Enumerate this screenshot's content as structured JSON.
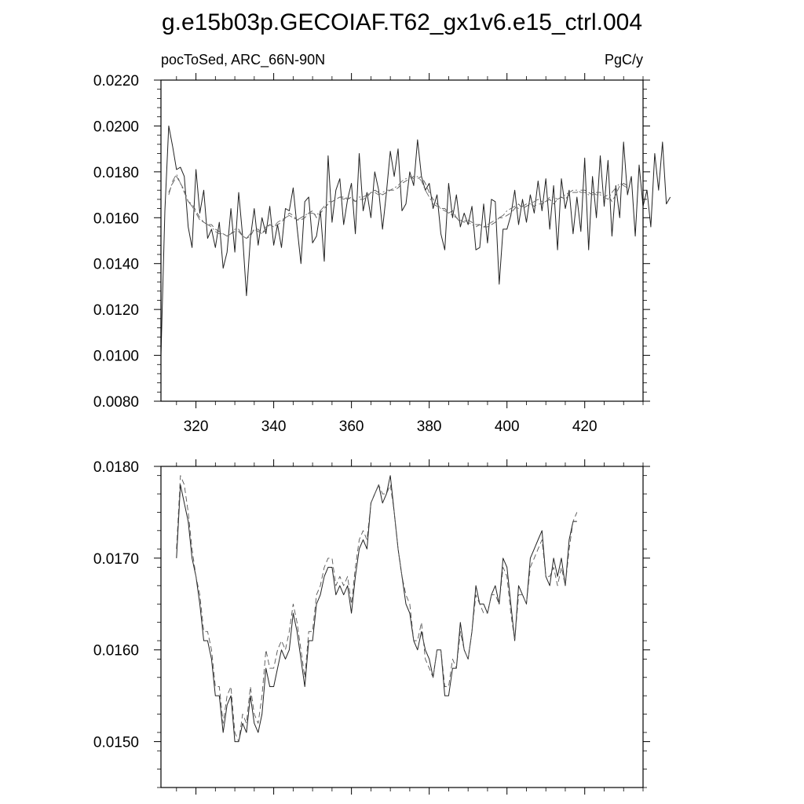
{
  "title": "g.e15b03p.GECOIAF.T62_gx1v6.e15_ctrl.004",
  "chart_data": [
    {
      "type": "line",
      "subtitle_left": "pocToSed, ARC_66N-90N",
      "subtitle_right": "PgC/y",
      "xlim": [
        311,
        435
      ],
      "ylim": [
        0.008,
        0.022
      ],
      "x_ticks": [
        320,
        340,
        360,
        380,
        400,
        420
      ],
      "x_tick_labels": [
        "320",
        "340",
        "360",
        "380",
        "400",
        "420"
      ],
      "y_ticks": [
        0.008,
        0.01,
        0.012,
        0.014,
        0.016,
        0.018,
        0.02,
        0.022
      ],
      "y_tick_labels": [
        "0.0080",
        "0.0100",
        "0.0120",
        "0.0140",
        "0.0160",
        "0.0180",
        "0.0200",
        "0.0220"
      ],
      "grid": false,
      "series": [
        {
          "style": "solid",
          "x_start": 311,
          "values": [
            0.01,
            0.0163,
            0.02,
            0.0191,
            0.0181,
            0.0182,
            0.0178,
            0.0156,
            0.0147,
            0.0181,
            0.0162,
            0.0172,
            0.0151,
            0.0155,
            0.0147,
            0.0158,
            0.0138,
            0.0145,
            0.0164,
            0.0145,
            0.0171,
            0.0152,
            0.0126,
            0.0151,
            0.0164,
            0.0148,
            0.016,
            0.0153,
            0.0165,
            0.0148,
            0.0157,
            0.0147,
            0.0164,
            0.0163,
            0.0173,
            0.0156,
            0.014,
            0.0167,
            0.0169,
            0.0149,
            0.0152,
            0.0163,
            0.0141,
            0.0187,
            0.0158,
            0.0172,
            0.0177,
            0.0157,
            0.0168,
            0.0175,
            0.0153,
            0.0188,
            0.0163,
            0.0171,
            0.016,
            0.018,
            0.0172,
            0.0155,
            0.0171,
            0.0189,
            0.0178,
            0.019,
            0.0163,
            0.0166,
            0.018,
            0.0174,
            0.0194,
            0.0178,
            0.0172,
            0.0175,
            0.0164,
            0.017,
            0.0153,
            0.0146,
            0.0175,
            0.016,
            0.017,
            0.0156,
            0.0162,
            0.0157,
            0.0165,
            0.0146,
            0.0147,
            0.0166,
            0.0149,
            0.0168,
            0.0167,
            0.0131,
            0.0155,
            0.0155,
            0.0161,
            0.0172,
            0.0157,
            0.0168,
            0.0158,
            0.017,
            0.0162,
            0.0176,
            0.0163,
            0.0177,
            0.0155,
            0.0174,
            0.0146,
            0.0177,
            0.0164,
            0.0172,
            0.0153,
            0.0169,
            0.0154,
            0.0186,
            0.0146,
            0.0178,
            0.016,
            0.0187,
            0.0165,
            0.0185,
            0.0152,
            0.0174,
            0.016,
            0.0193,
            0.017,
            0.0178,
            0.0152,
            0.0183,
            0.0165,
            0.0172,
            0.0156,
            0.0188,
            0.0172,
            0.0193,
            0.0166,
            0.0169
          ]
        },
        {
          "style": "dashed",
          "x_start": 313,
          "values": [
            0.0171,
            0.0175,
            0.0178,
            0.0175,
            0.0172,
            0.0167,
            0.0166,
            0.0163,
            0.016,
            0.0158,
            0.0157,
            0.0157,
            0.0155,
            0.0154,
            0.0153,
            0.0152,
            0.0153,
            0.0154,
            0.0154,
            0.0152,
            0.0151,
            0.0152,
            0.0155,
            0.0155,
            0.0153,
            0.0155,
            0.0157,
            0.0156,
            0.0157,
            0.0158,
            0.016,
            0.0162,
            0.0161,
            0.0159,
            0.0159,
            0.016,
            0.0162,
            0.0163,
            0.016,
            0.0162,
            0.0164,
            0.0166,
            0.0167,
            0.0168,
            0.0169,
            0.0169,
            0.0168,
            0.0169,
            0.0167,
            0.0168,
            0.0168,
            0.0169,
            0.0171,
            0.0172,
            0.0171,
            0.017,
            0.0171,
            0.0172,
            0.0172,
            0.0173,
            0.0175,
            0.0176,
            0.0177,
            0.0178,
            0.0177,
            0.0178,
            0.0175,
            0.0171,
            0.0168,
            0.0166,
            0.0164,
            0.0164,
            0.0162,
            0.0163,
            0.016,
            0.0159,
            0.0158,
            0.0159,
            0.0158,
            0.0157,
            0.0157,
            0.0156,
            0.0156,
            0.0157,
            0.0158,
            0.016,
            0.016,
            0.0161,
            0.0162,
            0.0164,
            0.0166,
            0.0164,
            0.0165,
            0.0166,
            0.0165,
            0.0166,
            0.0166,
            0.0167,
            0.0168,
            0.0166,
            0.0168,
            0.0169,
            0.0168,
            0.017,
            0.0171,
            0.0171,
            0.0172,
            0.0172,
            0.0171,
            0.017,
            0.0171,
            0.0171,
            0.0169,
            0.017,
            0.0167,
            0.017,
            0.0174,
            0.0175,
            0.0174
          ]
        },
        {
          "style": "dashdot",
          "x_start": 313,
          "values": [
            0.017,
            0.0176,
            0.0179,
            0.0175,
            0.0171,
            0.0167,
            0.0165,
            0.0162,
            0.0159,
            0.0158,
            0.0157,
            0.0156,
            0.0154,
            0.0153,
            0.0153,
            0.0152,
            0.0153,
            0.0155,
            0.0155,
            0.0152,
            0.0151,
            0.0153,
            0.0155,
            0.0154,
            0.0153,
            0.0156,
            0.0157,
            0.0156,
            0.0158,
            0.0159,
            0.016,
            0.0161,
            0.016,
            0.0159,
            0.016,
            0.0161,
            0.0162,
            0.0162,
            0.0161,
            0.0163,
            0.0165,
            0.0167,
            0.0167,
            0.0168,
            0.0169,
            0.0168,
            0.0169,
            0.0168,
            0.0167,
            0.0169,
            0.0169,
            0.017,
            0.0171,
            0.0171,
            0.017,
            0.0171,
            0.0172,
            0.0172,
            0.0173,
            0.0174,
            0.0176,
            0.0177,
            0.0178,
            0.0177,
            0.0178,
            0.0176,
            0.0172,
            0.0169,
            0.0166,
            0.0165,
            0.0164,
            0.0163,
            0.0162,
            0.0161,
            0.016,
            0.0158,
            0.0159,
            0.0158,
            0.0157,
            0.0156,
            0.0157,
            0.0156,
            0.0157,
            0.0158,
            0.0159,
            0.016,
            0.0161,
            0.0163,
            0.0164,
            0.0165,
            0.0164,
            0.0165,
            0.0166,
            0.0166,
            0.0167,
            0.0168,
            0.0167,
            0.0167,
            0.0169,
            0.0169,
            0.0168,
            0.0169,
            0.017,
            0.0171,
            0.0172,
            0.0172,
            0.0171,
            0.0171,
            0.017,
            0.0171,
            0.017,
            0.017,
            0.0169,
            0.0168,
            0.0171,
            0.0173,
            0.0175,
            0.0174,
            0.0173
          ]
        }
      ]
    },
    {
      "type": "line",
      "xlim": [
        311,
        435
      ],
      "ylim": [
        0.0145,
        0.018
      ],
      "x_ticks": [
        320,
        340,
        360,
        380,
        400,
        420
      ],
      "x_tick_labels": [],
      "y_ticks": [
        0.015,
        0.016,
        0.017,
        0.018
      ],
      "y_tick_labels": [
        "0.0150",
        "0.0160",
        "0.0170",
        "0.0180"
      ],
      "grid": false,
      "series": [
        {
          "style": "solid",
          "x_start": 315,
          "values": [
            0.017,
            0.0178,
            0.0176,
            0.0174,
            0.017,
            0.0168,
            0.0165,
            0.0161,
            0.0161,
            0.0159,
            0.0155,
            0.0155,
            0.0151,
            0.0154,
            0.0155,
            0.015,
            0.015,
            0.0152,
            0.0151,
            0.0155,
            0.0152,
            0.0151,
            0.0153,
            0.0158,
            0.0156,
            0.0156,
            0.0158,
            0.016,
            0.0159,
            0.016,
            0.0164,
            0.0162,
            0.0159,
            0.0156,
            0.0161,
            0.0161,
            0.0165,
            0.0166,
            0.0168,
            0.0169,
            0.0169,
            0.0166,
            0.0167,
            0.0166,
            0.0167,
            0.0164,
            0.0168,
            0.0171,
            0.0172,
            0.0171,
            0.0176,
            0.0177,
            0.0178,
            0.0176,
            0.0177,
            0.0179,
            0.0175,
            0.0171,
            0.0168,
            0.0165,
            0.0164,
            0.0161,
            0.016,
            0.0162,
            0.016,
            0.0159,
            0.0157,
            0.016,
            0.016,
            0.0155,
            0.0155,
            0.0158,
            0.0158,
            0.0163,
            0.016,
            0.0159,
            0.0162,
            0.0167,
            0.0165,
            0.0165,
            0.0164,
            0.0166,
            0.0167,
            0.0165,
            0.017,
            0.0169,
            0.0165,
            0.0161,
            0.0167,
            0.0166,
            0.0165,
            0.017,
            0.0171,
            0.0172,
            0.0173,
            0.0168,
            0.0167,
            0.017,
            0.0168,
            0.017,
            0.0167,
            0.0172,
            0.0174,
            0.0174
          ]
        },
        {
          "style": "dashed",
          "x_start": 315,
          "values": [
            0.0171,
            0.0179,
            0.0178,
            0.0175,
            0.0171,
            0.0168,
            0.0166,
            0.0162,
            0.0162,
            0.016,
            0.0156,
            0.0156,
            0.0152,
            0.0155,
            0.0156,
            0.0151,
            0.015,
            0.0153,
            0.0152,
            0.0156,
            0.0153,
            0.0152,
            0.0155,
            0.016,
            0.0158,
            0.0158,
            0.016,
            0.0161,
            0.016,
            0.0162,
            0.0165,
            0.0163,
            0.016,
            0.0157,
            0.0162,
            0.0162,
            0.0166,
            0.0167,
            0.0169,
            0.017,
            0.017,
            0.0167,
            0.0168,
            0.0167,
            0.0168,
            0.0165,
            0.0169,
            0.0172,
            0.0173,
            0.0172,
            0.0176,
            0.0177,
            0.0178,
            0.0177,
            0.0177,
            0.0178,
            0.0175,
            0.0171,
            0.0168,
            0.0166,
            0.0165,
            0.0161,
            0.0161,
            0.0163,
            0.0159,
            0.0158,
            0.0157,
            0.016,
            0.016,
            0.0156,
            0.0156,
            0.0159,
            0.0158,
            0.0162,
            0.016,
            0.0159,
            0.0162,
            0.0166,
            0.0165,
            0.0164,
            0.0164,
            0.0166,
            0.0166,
            0.0165,
            0.0169,
            0.0168,
            0.0164,
            0.0161,
            0.0166,
            0.0166,
            0.0165,
            0.0169,
            0.017,
            0.0171,
            0.0172,
            0.0168,
            0.0168,
            0.0169,
            0.0167,
            0.0169,
            0.0167,
            0.0171,
            0.0174,
            0.0175
          ]
        }
      ]
    }
  ]
}
